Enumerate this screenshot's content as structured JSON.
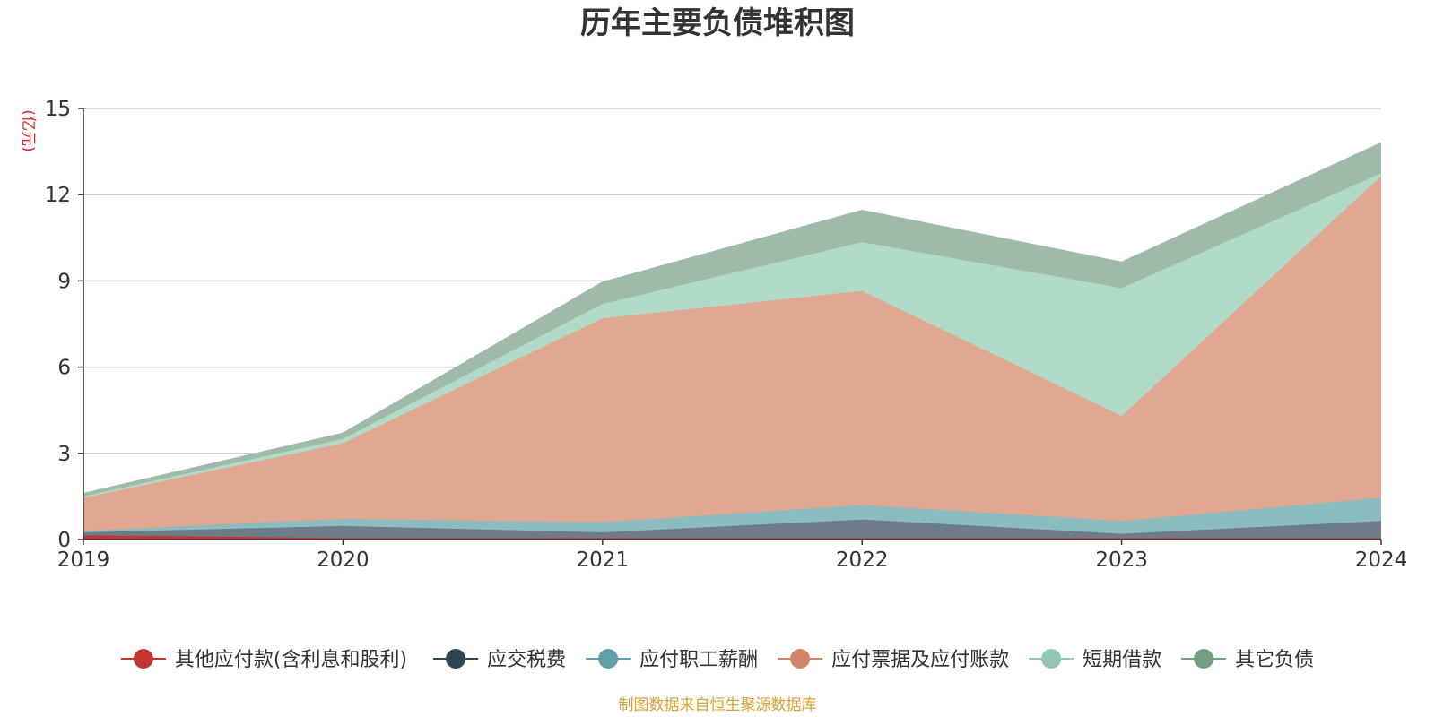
{
  "chart_data": {
    "type": "area",
    "title": "历年主要负债堆积图",
    "unit_label": "(亿元)",
    "categories": [
      "2019",
      "2020",
      "2021",
      "2022",
      "2023",
      "2024"
    ],
    "y_ticks": [
      "0",
      "3",
      "6",
      "9",
      "12",
      "15"
    ],
    "ylim": [
      0,
      15
    ],
    "stacked": true,
    "grid": true,
    "legend_position": "bottom",
    "series": [
      {
        "name": "其他应付款(含利息和股利)",
        "color": "#c23531",
        "fill": "#c23531",
        "values": [
          0.15,
          0.05,
          0.05,
          0.05,
          0.05,
          0.05
        ]
      },
      {
        "name": "应交税费",
        "color": "#2f4554",
        "fill": "#6e7b89",
        "values": [
          0.1,
          0.42,
          0.2,
          0.65,
          0.15,
          0.6
        ]
      },
      {
        "name": "应付职工薪酬",
        "color": "#61a0a8",
        "fill": "#8bbcc0",
        "values": [
          0.05,
          0.25,
          0.35,
          0.5,
          0.45,
          0.8
        ]
      },
      {
        "name": "应付票据及应付账款",
        "color": "#d48265",
        "fill": "#e0a792",
        "values": [
          1.15,
          2.63,
          7.1,
          7.45,
          3.65,
          11.2
        ]
      },
      {
        "name": "短期借款",
        "color": "#91c7ae",
        "fill": "#b0dac6",
        "values": [
          0.05,
          0.15,
          0.5,
          1.7,
          4.45,
          0.1
        ]
      },
      {
        "name": "其它负债",
        "color": "#749f83",
        "fill": "#9fbaa8",
        "values": [
          0.1,
          0.2,
          0.75,
          1.1,
          0.9,
          1.05
        ]
      }
    ],
    "source_note": "制图数据来自恒生聚源数据库"
  }
}
